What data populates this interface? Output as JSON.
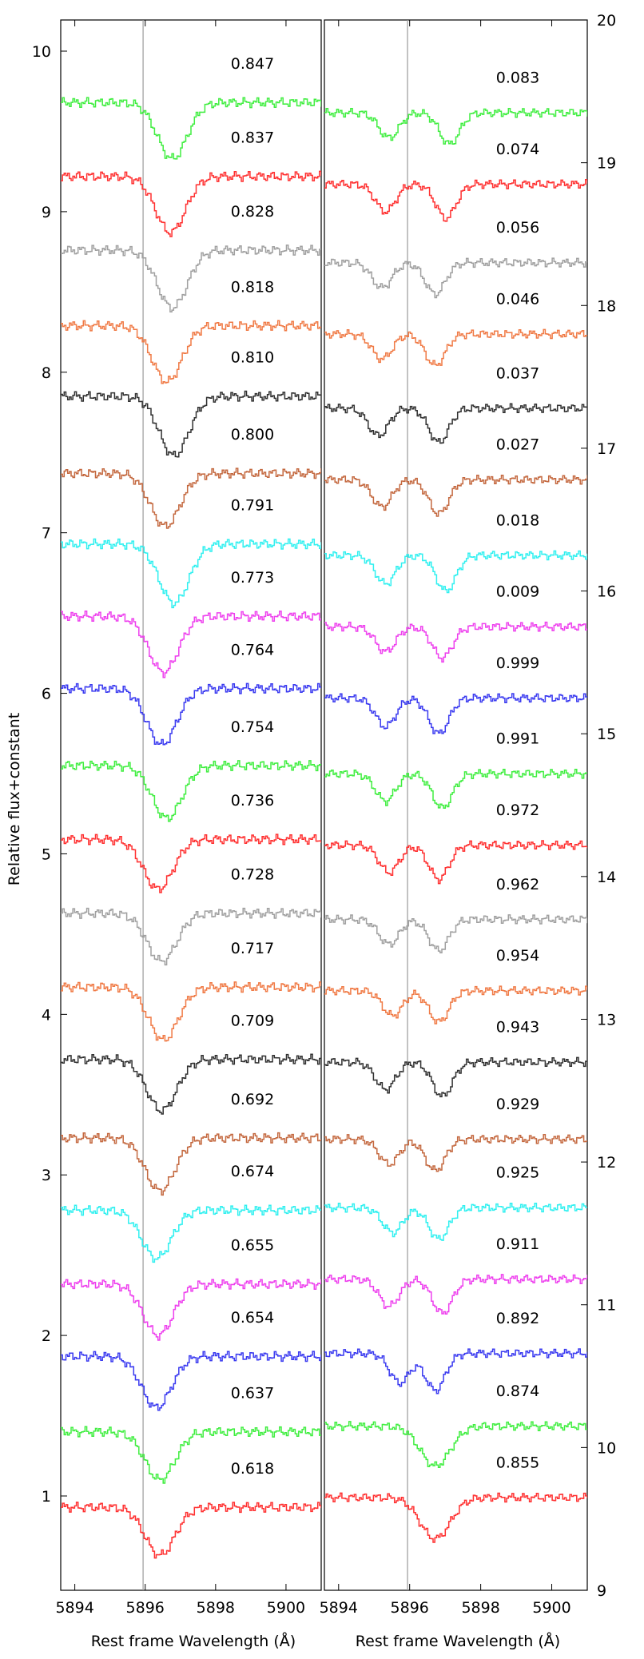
{
  "chart_data": [
    {
      "type": "line",
      "panel": "left",
      "xlabel": "Rest frame Wavelength (Å)",
      "ylabel": "Relative flux+constant",
      "xlim": [
        5893.6,
        5901.0
      ],
      "ylim": [
        0.4,
        10.4
      ],
      "x_ticks": [
        5894,
        5896,
        5898,
        5900
      ],
      "y_ticks": [
        1,
        2,
        3,
        4,
        5,
        6,
        7,
        8,
        9,
        10
      ],
      "y_axis_side": "left",
      "reference_line_x": 5895.94,
      "grid": false,
      "legend": "none",
      "series": [
        {
          "name": "0.618",
          "color": "#ff3030",
          "baseline": 0.93,
          "depth": 0.3,
          "centers": [
            5896.4
          ]
        },
        {
          "name": "0.637",
          "color": "#40ee40",
          "baseline": 1.4,
          "depth": 0.3,
          "centers": [
            5896.4
          ]
        },
        {
          "name": "0.654",
          "color": "#3a3af0",
          "baseline": 1.87,
          "depth": 0.32,
          "centers": [
            5896.3
          ]
        },
        {
          "name": "0.655",
          "color": "#ee40ee",
          "baseline": 2.32,
          "depth": 0.32,
          "centers": [
            5896.35
          ]
        },
        {
          "name": "0.674",
          "color": "#30f0f0",
          "baseline": 2.78,
          "depth": 0.3,
          "centers": [
            5896.3
          ]
        },
        {
          "name": "0.692",
          "color": "#c4683f",
          "baseline": 3.23,
          "depth": 0.33,
          "centers": [
            5896.4
          ]
        },
        {
          "name": "0.709",
          "color": "#303030",
          "baseline": 3.72,
          "depth": 0.32,
          "centers": [
            5896.45
          ]
        },
        {
          "name": "0.717",
          "color": "#f07a45",
          "baseline": 4.17,
          "depth": 0.33,
          "centers": [
            5896.5
          ]
        },
        {
          "name": "0.728",
          "color": "#a0a0a0",
          "baseline": 4.63,
          "depth": 0.3,
          "centers": [
            5896.45
          ]
        },
        {
          "name": "0.736",
          "color": "#ff3030",
          "baseline": 5.09,
          "depth": 0.31,
          "centers": [
            5896.35
          ]
        },
        {
          "name": "0.754",
          "color": "#40ee40",
          "baseline": 5.55,
          "depth": 0.33,
          "centers": [
            5896.6
          ]
        },
        {
          "name": "0.764",
          "color": "#3a3af0",
          "baseline": 6.03,
          "depth": 0.35,
          "centers": [
            5896.45
          ]
        },
        {
          "name": "0.773",
          "color": "#ee40ee",
          "baseline": 6.48,
          "depth": 0.35,
          "centers": [
            5896.5
          ]
        },
        {
          "name": "0.791",
          "color": "#30f0f0",
          "baseline": 6.93,
          "depth": 0.37,
          "centers": [
            5896.8
          ]
        },
        {
          "name": "0.800",
          "color": "#c4683f",
          "baseline": 7.37,
          "depth": 0.33,
          "centers": [
            5896.55
          ]
        },
        {
          "name": "0.810",
          "color": "#303030",
          "baseline": 7.85,
          "depth": 0.37,
          "centers": [
            5896.8
          ]
        },
        {
          "name": "0.818",
          "color": "#f07a45",
          "baseline": 8.29,
          "depth": 0.35,
          "centers": [
            5896.6
          ]
        },
        {
          "name": "0.828",
          "color": "#a0a0a0",
          "baseline": 8.76,
          "depth": 0.36,
          "centers": [
            5896.75
          ]
        },
        {
          "name": "0.837",
          "color": "#ff3030",
          "baseline": 9.22,
          "depth": 0.35,
          "centers": [
            5896.7
          ]
        },
        {
          "name": "0.847",
          "color": "#40ee40",
          "baseline": 9.68,
          "depth": 0.35,
          "centers": [
            5896.75
          ]
        }
      ]
    },
    {
      "type": "line",
      "panel": "right",
      "xlabel": "Rest frame Wavelength (Å)",
      "ylabel": "",
      "xlim": [
        5893.6,
        5901.0
      ],
      "ylim": [
        9,
        20
      ],
      "x_ticks": [
        5894,
        5896,
        5898,
        5900
      ],
      "y_ticks": [
        9,
        10,
        11,
        12,
        13,
        14,
        15,
        16,
        17,
        18,
        19,
        20
      ],
      "y_axis_side": "right",
      "reference_line_x": 5895.94,
      "grid": false,
      "legend": "none",
      "series": [
        {
          "name": "0.855",
          "color": "#ff3030",
          "baseline": 9.65,
          "depth": 0.29,
          "centers": [
            5896.7
          ]
        },
        {
          "name": "0.874",
          "color": "#40ee40",
          "baseline": 10.15,
          "depth": 0.28,
          "centers": [
            5896.7
          ]
        },
        {
          "name": "0.892",
          "color": "#3a3af0",
          "baseline": 10.66,
          "depth": 0.26,
          "centers": [
            5895.7,
            5896.7
          ]
        },
        {
          "name": "0.911",
          "color": "#ee40ee",
          "baseline": 11.18,
          "depth": 0.24,
          "centers": [
            5895.4,
            5896.9
          ]
        },
        {
          "name": "0.925",
          "color": "#30f0f0",
          "baseline": 11.68,
          "depth": 0.22,
          "centers": [
            5895.5,
            5896.8
          ]
        },
        {
          "name": "0.929",
          "color": "#c4683f",
          "baseline": 12.16,
          "depth": 0.22,
          "centers": [
            5895.4,
            5896.7
          ]
        },
        {
          "name": "0.943",
          "color": "#303030",
          "baseline": 12.7,
          "depth": 0.24,
          "centers": [
            5895.3,
            5896.9
          ]
        },
        {
          "name": "0.954",
          "color": "#f07a45",
          "baseline": 13.2,
          "depth": 0.22,
          "centers": [
            5895.5,
            5896.8
          ]
        },
        {
          "name": "0.962",
          "color": "#a0a0a0",
          "baseline": 13.7,
          "depth": 0.22,
          "centers": [
            5895.4,
            5896.8
          ]
        },
        {
          "name": "0.972",
          "color": "#ff3030",
          "baseline": 14.22,
          "depth": 0.24,
          "centers": [
            5895.4,
            5896.8
          ]
        },
        {
          "name": "0.991",
          "color": "#40ee40",
          "baseline": 14.72,
          "depth": 0.24,
          "centers": [
            5895.3,
            5896.9
          ]
        },
        {
          "name": "0.999",
          "color": "#3a3af0",
          "baseline": 15.25,
          "depth": 0.25,
          "centers": [
            5895.3,
            5896.8
          ]
        },
        {
          "name": "0.009",
          "color": "#ee40ee",
          "baseline": 15.75,
          "depth": 0.22,
          "centers": [
            5895.3,
            5896.9
          ]
        },
        {
          "name": "0.018",
          "color": "#30f0f0",
          "baseline": 16.25,
          "depth": 0.25,
          "centers": [
            5895.3,
            5897.0
          ]
        },
        {
          "name": "0.027",
          "color": "#c4683f",
          "baseline": 16.78,
          "depth": 0.24,
          "centers": [
            5895.2,
            5896.8
          ]
        },
        {
          "name": "0.037",
          "color": "#303030",
          "baseline": 17.28,
          "depth": 0.24,
          "centers": [
            5895.1,
            5896.8
          ]
        },
        {
          "name": "0.046",
          "color": "#f07a45",
          "baseline": 17.8,
          "depth": 0.22,
          "centers": [
            5895.2,
            5896.7
          ]
        },
        {
          "name": "0.056",
          "color": "#a0a0a0",
          "baseline": 18.3,
          "depth": 0.22,
          "centers": [
            5895.2,
            5896.7
          ]
        },
        {
          "name": "0.074",
          "color": "#ff3030",
          "baseline": 18.85,
          "depth": 0.24,
          "centers": [
            5895.3,
            5897.0
          ]
        },
        {
          "name": "0.083",
          "color": "#40ee40",
          "baseline": 19.35,
          "depth": 0.22,
          "centers": [
            5895.4,
            5897.1
          ]
        }
      ]
    }
  ]
}
